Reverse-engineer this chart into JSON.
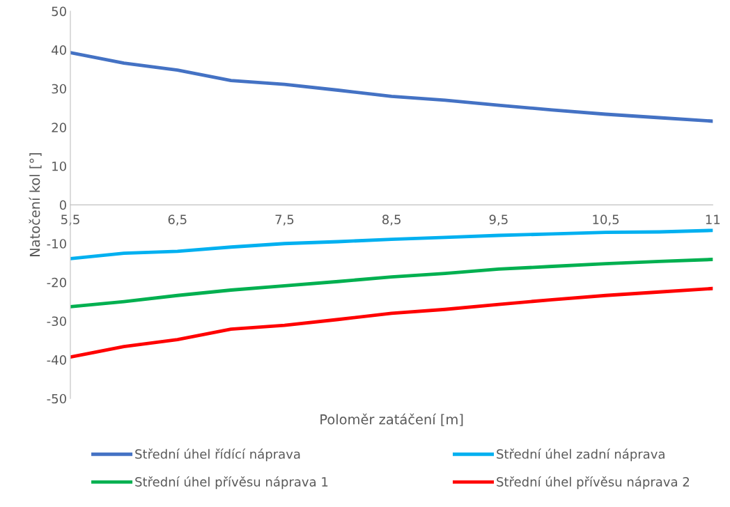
{
  "chart_data": {
    "type": "line",
    "xlabel": "Poloměr zatáčení [m]",
    "ylabel": "Natočení kol [°]",
    "categories": [
      "5,5",
      null,
      "6,5",
      null,
      "7,5",
      null,
      "8,5",
      null,
      "9,5",
      null,
      "10,5",
      null,
      "11"
    ],
    "ylim": [
      -50,
      50
    ],
    "yticks": [
      -50,
      -40,
      -30,
      -20,
      -10,
      0,
      10,
      20,
      30,
      40,
      50
    ],
    "grid": false,
    "legend": "bottom",
    "marker": "none",
    "line_style": "solid",
    "series": [
      {
        "name": "Střední úhel řídící náprava",
        "color": "#4472c4",
        "values": [
          39.3,
          36.6,
          34.8,
          32.1,
          31.1,
          29.6,
          28.0,
          27.0,
          25.7,
          24.5,
          23.4,
          22.5,
          21.6
        ]
      },
      {
        "name": "Střední úhel zadní náprava",
        "color": "#00b0f0",
        "values": [
          -13.9,
          -12.5,
          -12.0,
          -10.9,
          -10.0,
          -9.5,
          -8.9,
          -8.4,
          -7.9,
          -7.5,
          -7.1,
          -7.0,
          -6.6
        ]
      },
      {
        "name": "Střední úhel přívěsu náprava 1",
        "color": "#00b050",
        "values": [
          -26.3,
          -25.0,
          -23.4,
          -22.0,
          -20.9,
          -19.8,
          -18.6,
          -17.7,
          -16.6,
          -15.9,
          -15.2,
          -14.6,
          -14.1
        ]
      },
      {
        "name": "Střední úhel přívěsu náprava 2",
        "color": "#ff0000",
        "values": [
          -39.3,
          -36.6,
          -34.8,
          -32.1,
          -31.1,
          -29.6,
          -28.0,
          -27.0,
          -25.7,
          -24.5,
          -23.4,
          -22.5,
          -21.6
        ]
      }
    ]
  }
}
